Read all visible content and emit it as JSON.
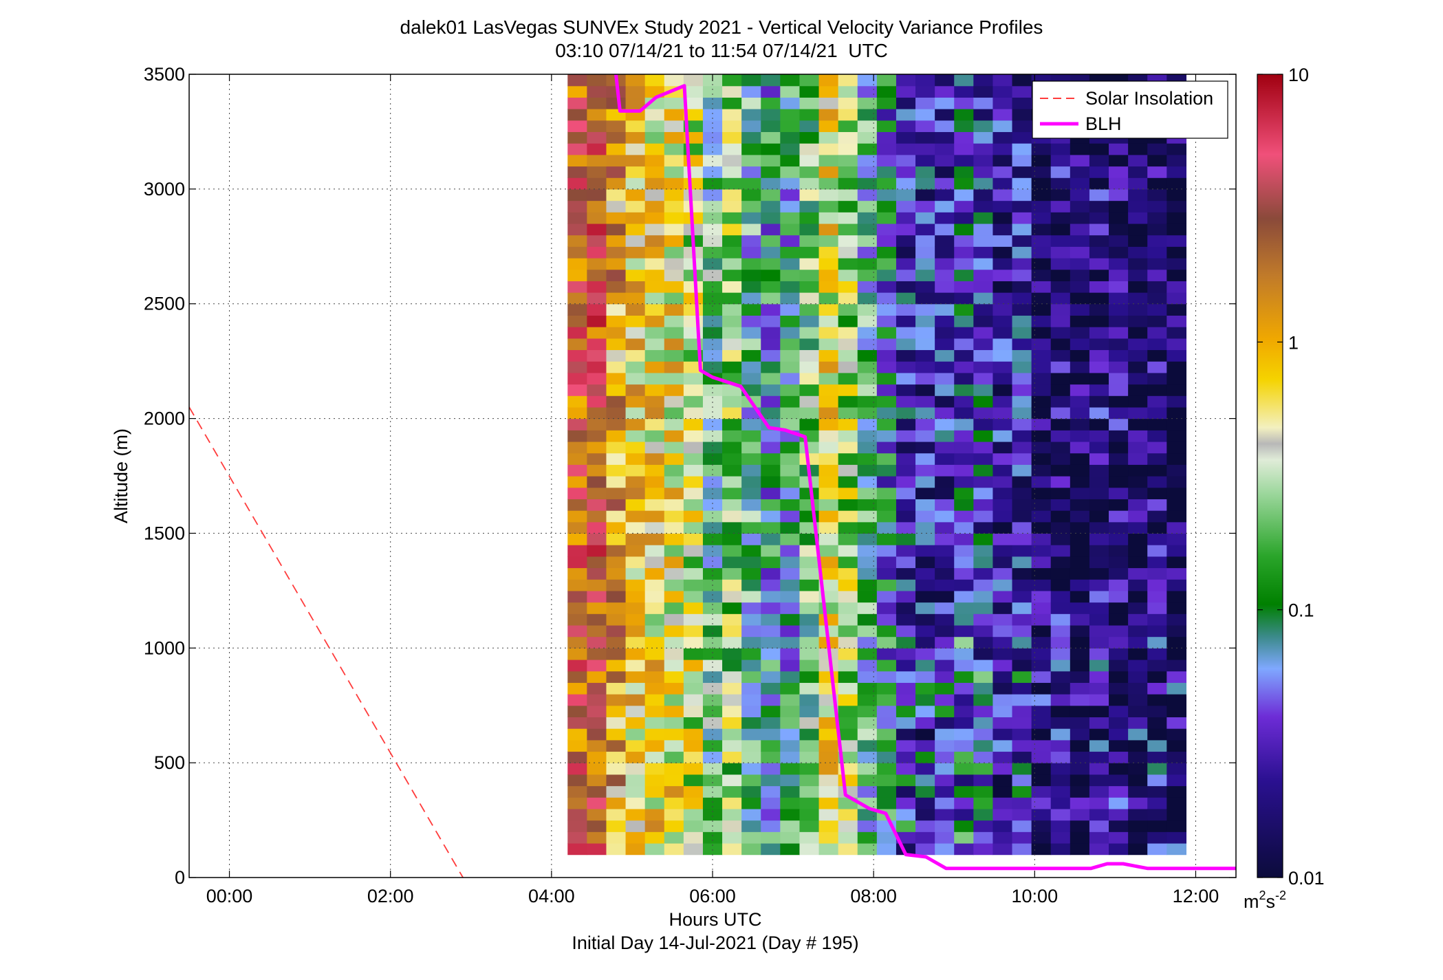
{
  "chart_data": {
    "type": "heatmap",
    "title": "dalek01 LasVegas SUNVEx Study 2021 - Vertical Velocity Variance Profiles",
    "subtitle": "03:10 07/14/21 to 11:54 07/14/21  UTC",
    "xlabel": "Hours UTC",
    "xlabel2": "Initial Day 14-Jul-2021 (Day # 195)",
    "ylabel": "Altitude (m)",
    "xlim": [
      -0.5,
      12.5
    ],
    "ylim": [
      0,
      3500
    ],
    "x_ticks": [
      0,
      2,
      4,
      6,
      8,
      10,
      12
    ],
    "x_tick_labels": [
      "00:00",
      "02:00",
      "04:00",
      "06:00",
      "08:00",
      "10:00",
      "12:00"
    ],
    "y_ticks": [
      0,
      500,
      1000,
      1500,
      2000,
      2500,
      3000,
      3500
    ],
    "y_tick_labels": [
      "0",
      "500",
      "1000",
      "1500",
      "2000",
      "2500",
      "3000",
      "3500"
    ],
    "grid": true,
    "legend_position": "top-right",
    "colorbar": {
      "scale": "log",
      "range": [
        0.01,
        10
      ],
      "ticks": [
        0.01,
        0.1,
        1,
        10
      ],
      "tick_labels": [
        "0.01",
        "0.1",
        "1",
        "10"
      ],
      "unit_base": "m",
      "unit_exp1": "2",
      "unit_mid": "s",
      "unit_exp2": "-2"
    },
    "heatmap": {
      "x_start": 4.2,
      "x_step": 0.24,
      "y_start": 100,
      "y_step": 50,
      "columns": [
        {
          "x": 4.2,
          "top": 3500,
          "variance": 2.5
        },
        {
          "x": 4.44,
          "top": 3500,
          "variance": 3.0
        },
        {
          "x": 4.68,
          "top": 3500,
          "variance": 1.2
        },
        {
          "x": 4.92,
          "top": 3500,
          "variance": 0.7
        },
        {
          "x": 5.16,
          "top": 3500,
          "variance": 0.6
        },
        {
          "x": 5.4,
          "top": 3500,
          "variance": 0.55
        },
        {
          "x": 5.64,
          "top": 3500,
          "variance": 0.35
        },
        {
          "x": 5.88,
          "top": 3500,
          "variance": 0.15
        },
        {
          "x": 6.12,
          "top": 3500,
          "variance": 0.25
        },
        {
          "x": 6.36,
          "top": 3500,
          "variance": 0.12
        },
        {
          "x": 6.6,
          "top": 3500,
          "variance": 0.09
        },
        {
          "x": 6.84,
          "top": 3500,
          "variance": 0.1
        },
        {
          "x": 7.08,
          "top": 3500,
          "variance": 0.2
        },
        {
          "x": 7.32,
          "top": 3500,
          "variance": 0.5
        },
        {
          "x": 7.56,
          "top": 3500,
          "variance": 0.3
        },
        {
          "x": 7.8,
          "top": 3500,
          "variance": 0.12
        },
        {
          "x": 8.04,
          "top": 3500,
          "variance": 0.07
        },
        {
          "x": 8.28,
          "top": 3500,
          "variance": 0.035
        },
        {
          "x": 8.52,
          "top": 3500,
          "variance": 0.03
        },
        {
          "x": 8.76,
          "top": 3500,
          "variance": 0.03
        },
        {
          "x": 9.0,
          "top": 3500,
          "variance": 0.05
        },
        {
          "x": 9.24,
          "top": 3500,
          "variance": 0.04
        },
        {
          "x": 9.48,
          "top": 3500,
          "variance": 0.025
        },
        {
          "x": 9.72,
          "top": 3500,
          "variance": 0.03
        },
        {
          "x": 9.96,
          "top": 3500,
          "variance": 0.015
        },
        {
          "x": 10.2,
          "top": 3500,
          "variance": 0.02
        },
        {
          "x": 10.44,
          "top": 3500,
          "variance": 0.014
        },
        {
          "x": 10.68,
          "top": 3500,
          "variance": 0.02
        },
        {
          "x": 10.92,
          "top": 3500,
          "variance": 0.018
        },
        {
          "x": 11.16,
          "top": 3500,
          "variance": 0.013
        },
        {
          "x": 11.4,
          "top": 3500,
          "variance": 0.018
        },
        {
          "x": 11.64,
          "top": 3500,
          "variance": 0.012
        }
      ]
    },
    "series": [
      {
        "name": "Solar Insolation",
        "style": "dashed",
        "color": "#ff3b3b",
        "x": [
          -0.5,
          2.9
        ],
        "y": [
          2050,
          0
        ]
      },
      {
        "name": "BLH",
        "style": "solid",
        "color": "#ff00ff",
        "x": [
          4.8,
          4.85,
          5.1,
          5.3,
          5.65,
          5.85,
          6.0,
          6.35,
          6.7,
          6.9,
          7.15,
          7.65,
          7.95,
          8.15,
          8.4,
          8.65,
          8.9,
          10.7,
          10.9,
          11.1,
          11.4,
          12.5
        ],
        "y": [
          3500,
          3340,
          3340,
          3400,
          3450,
          2210,
          2180,
          2140,
          1960,
          1950,
          1920,
          360,
          300,
          280,
          100,
          90,
          40,
          40,
          60,
          60,
          40,
          40
        ]
      }
    ]
  }
}
